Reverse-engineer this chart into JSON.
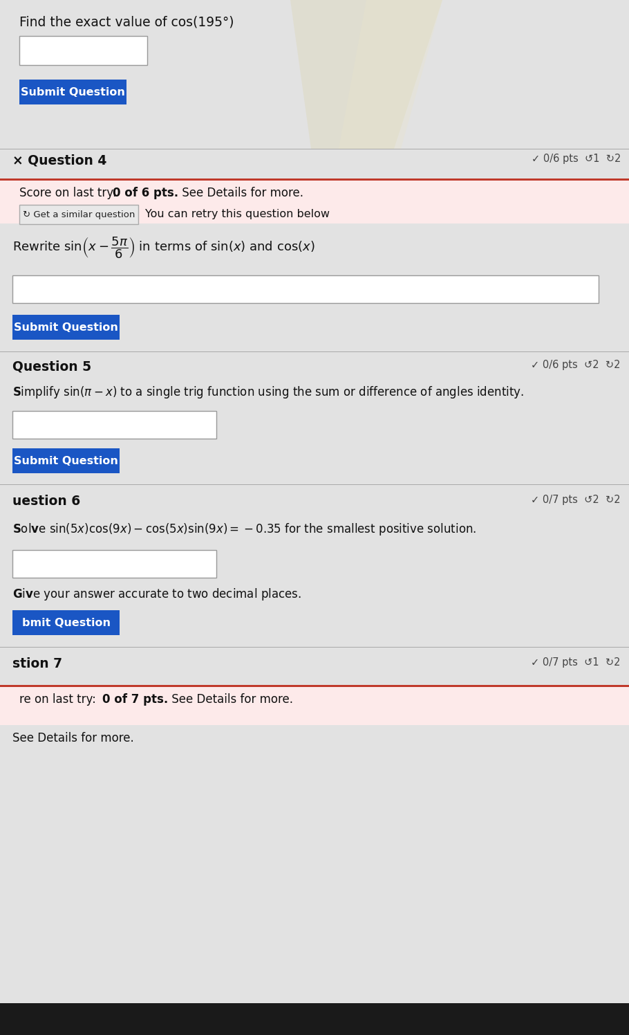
{
  "bg_color": "#c8c8c8",
  "section_bg": "#e2e2e2",
  "white_bg": "#ffffff",
  "light_pink_bg": "#fdeaea",
  "blue_btn": "#1a56c4",
  "red_line": "#c0392b",
  "text_color": "#111111",
  "gray_text": "#555555",
  "section_divider": "#aaaaaa",
  "q3_title": "Find the exact value of cos(195°)",
  "q3_btn": "Submit Question",
  "q4_label": "× Question 4",
  "q4_pts": "✓ 0/6 pts  ↺1  ↻2",
  "q4_score_pre": "Score on last try: ",
  "q4_score_bold": "0 of 6 pts.",
  "q4_score_post": " See Details for more.",
  "q4_retry_btn": "↻ Get a similar question",
  "q4_retry_text": "You can retry this question below",
  "q4_btn": "Submit Question",
  "q5_label": "Question 5",
  "q5_pts": "✓ 0/6 pts  ↺2  ↻2",
  "q5_question_pre": "implify sin(π − x) to a single trig function using the sum or difference of angles identity.",
  "q5_btn": "Submit Question",
  "q6_label": "uestion 6",
  "q6_pts": "✓ 0/7 pts  ↺2  ↻2",
  "q6_question": "ve sin(5x) cos(9x) − cos(5x) sin(9x) = −0.35 for the smallest positive solution.",
  "q6_subtext": "e your answer accurate to two decimal places.",
  "q6_btn": "bmit Question",
  "q7_label": "stion 7",
  "q7_pts": "✓ 0/7 pts  ↺1  ↻2",
  "q7_score_pre": "re on last try: ",
  "q7_score_bold": "0 of 7 pts.",
  "q7_score_post": " See Details for more."
}
